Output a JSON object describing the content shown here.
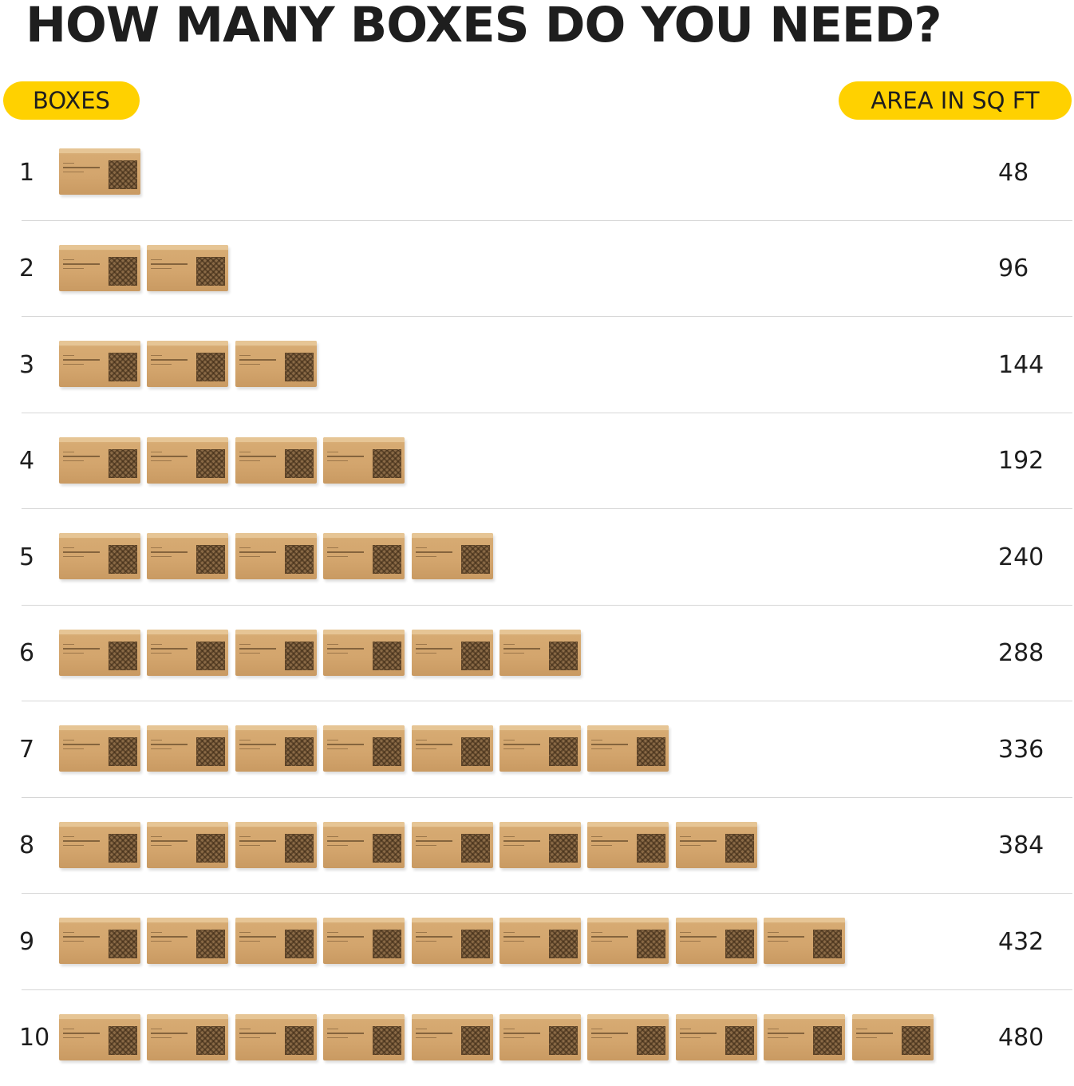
{
  "title": "HOW MANY BOXES DO YOU NEED?",
  "colors": {
    "accent": "#ffd100",
    "text": "#1e1e1e",
    "box": "#d6aa72",
    "separator": "#d6d6d6"
  },
  "headers": {
    "boxes": "BOXES",
    "area": "AREA IN SQ FT"
  },
  "chart_data": {
    "type": "table",
    "columns": [
      "BOXES",
      "AREA IN SQ FT"
    ],
    "boxes": [
      1,
      2,
      3,
      4,
      5,
      6,
      7,
      8,
      9,
      10
    ],
    "area_sq_ft": [
      48,
      96,
      144,
      192,
      240,
      288,
      336,
      384,
      432,
      480
    ],
    "rows": [
      {
        "boxes": "1",
        "area": "48"
      },
      {
        "boxes": "2",
        "area": "96"
      },
      {
        "boxes": "3",
        "area": "144"
      },
      {
        "boxes": "4",
        "area": "192"
      },
      {
        "boxes": "5",
        "area": "240"
      },
      {
        "boxes": "6",
        "area": "288"
      },
      {
        "boxes": "7",
        "area": "336"
      },
      {
        "boxes": "8",
        "area": "384"
      },
      {
        "boxes": "9",
        "area": "432"
      },
      {
        "boxes": "10",
        "area": "480"
      }
    ]
  }
}
